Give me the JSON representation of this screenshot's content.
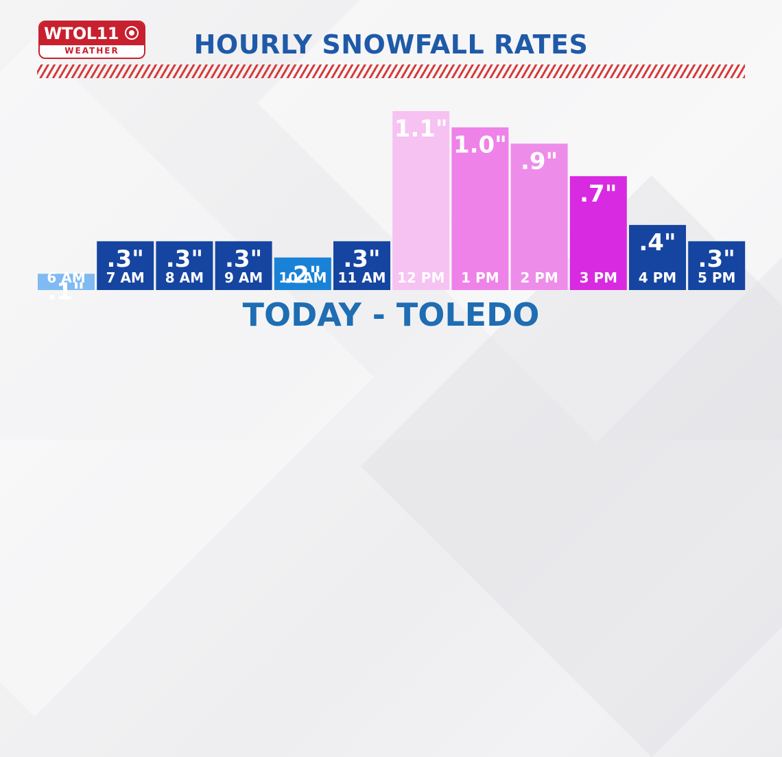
{
  "logo": {
    "brand": "WTOL11",
    "sub": "WEATHER"
  },
  "title": "HOURLY SNOWFALL RATES",
  "subtitle": "TODAY - TOLEDO",
  "chart_data": {
    "type": "bar",
    "title": "HOURLY SNOWFALL RATES",
    "subtitle": "TODAY - TOLEDO",
    "categories": [
      "6 AM",
      "7 AM",
      "8 AM",
      "9 AM",
      "10 AM",
      "11 AM",
      "12 PM",
      "1 PM",
      "2 PM",
      "3 PM",
      "4 PM",
      "5 PM"
    ],
    "values": [
      0.1,
      0.3,
      0.3,
      0.3,
      0.2,
      0.3,
      1.1,
      1.0,
      0.9,
      0.7,
      0.4,
      0.3
    ],
    "value_labels": [
      ".1\"",
      ".3\"",
      ".3\"",
      ".3\"",
      ".2\"",
      ".3\"",
      "1.1\"",
      "1.0\"",
      ".9\"",
      ".7\"",
      ".4\"",
      ".3\""
    ],
    "colors": [
      "#7fbaf2",
      "#1545a0",
      "#1545a0",
      "#1545a0",
      "#1a82d6",
      "#1545a0",
      "#f6c2f2",
      "#ee82e8",
      "#ee8cea",
      "#d82ae0",
      "#1545a0",
      "#1545a0"
    ],
    "ylim": [
      0,
      1.1
    ],
    "grid": false,
    "legend": "none"
  }
}
